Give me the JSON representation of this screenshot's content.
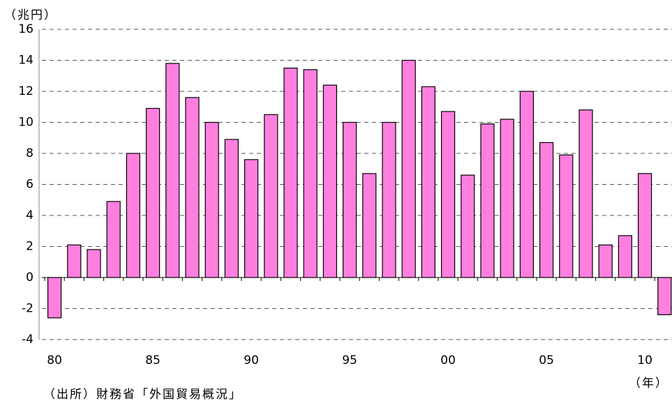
{
  "chart_data": {
    "type": "bar",
    "y_label": "（兆円）",
    "x_label": "（年）",
    "note": "（出所）財務省「外国貿易概況」",
    "categories": [
      "80",
      null,
      null,
      null,
      null,
      "85",
      null,
      null,
      null,
      null,
      "90",
      null,
      null,
      null,
      null,
      "95",
      null,
      null,
      null,
      null,
      "00",
      null,
      null,
      null,
      null,
      "05",
      null,
      null,
      null,
      null,
      "10",
      null
    ],
    "values": [
      -2.6,
      2.1,
      1.8,
      4.9,
      8.0,
      10.9,
      13.8,
      11.6,
      10.0,
      8.9,
      7.6,
      10.5,
      13.5,
      13.4,
      12.4,
      10.0,
      6.7,
      10.0,
      14.0,
      12.3,
      10.7,
      6.6,
      9.9,
      10.2,
      12.0,
      8.7,
      7.9,
      10.8,
      2.1,
      2.7,
      6.7,
      -2.4
    ],
    "color": "#ff7fdf",
    "ylim": [
      -4,
      16
    ],
    "yticks": [
      -4,
      -2,
      0,
      2,
      4,
      6,
      8,
      10,
      12,
      14,
      16
    ],
    "grid": true
  }
}
